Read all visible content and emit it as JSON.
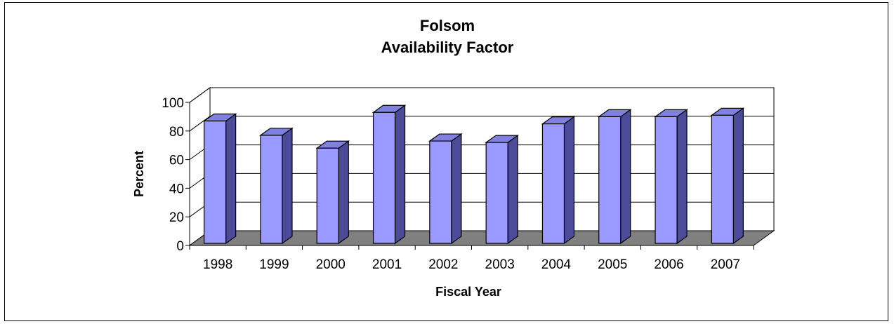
{
  "chart_data": {
    "type": "bar",
    "title": "Folsom",
    "subtitle": "Availability Factor",
    "xlabel": "Fiscal Year",
    "ylabel": "Percent",
    "categories": [
      "1998",
      "1999",
      "2000",
      "2001",
      "2002",
      "2003",
      "2004",
      "2005",
      "2006",
      "2007"
    ],
    "values": [
      87,
      77,
      68,
      93,
      73,
      72,
      85,
      90,
      90,
      91
    ],
    "ylim": [
      0,
      100
    ],
    "yticks": [
      "0",
      "20",
      "40",
      "60",
      "80",
      "100"
    ],
    "grid": true,
    "legend": "none",
    "style_3d": true,
    "colors": {
      "bar_front": "#9999ff",
      "bar_top": "#8080e0",
      "bar_side": "#4b4b99",
      "floor": "#808080",
      "gridline": "#000000"
    }
  }
}
